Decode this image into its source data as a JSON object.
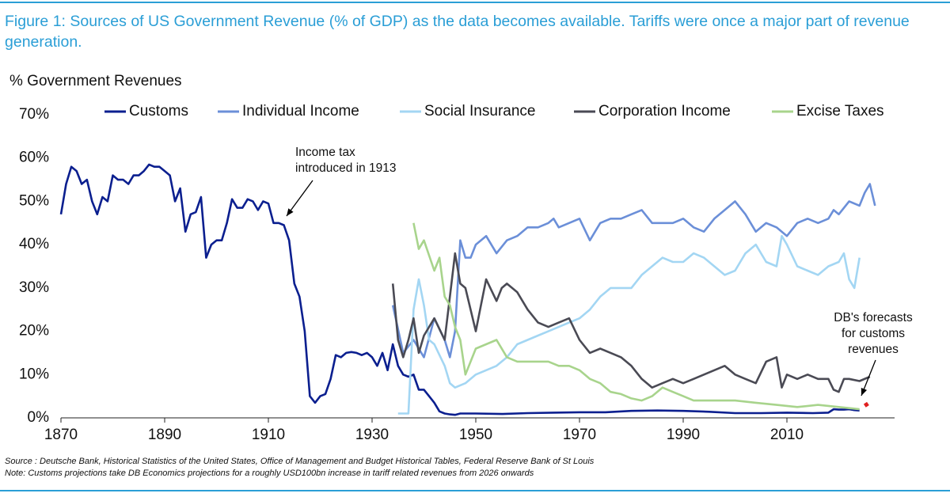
{
  "chart_data": {
    "type": "line",
    "title": "Figure 1: Sources of US Government Revenue (% of GDP) as the data becomes available. Tariffs were once a major part of revenue generation.",
    "y_label": "% Government Revenues",
    "xlim": [
      1870,
      2030
    ],
    "xticks": [
      1870,
      1890,
      1910,
      1930,
      1950,
      1970,
      1990,
      2010
    ],
    "ylim": [
      0,
      70
    ],
    "yticks": [
      {
        "value": 0,
        "label": "0%"
      },
      {
        "value": 10,
        "label": "10%"
      },
      {
        "value": 20,
        "label": "20%"
      },
      {
        "value": 30,
        "label": "30%"
      },
      {
        "value": 40,
        "label": "40%"
      },
      {
        "value": 50,
        "label": "50%"
      },
      {
        "value": 60,
        "label": "60%"
      },
      {
        "value": 70,
        "label": "70%"
      }
    ],
    "grid": false,
    "legend": "top",
    "series": [
      {
        "name": "Customs",
        "color": "#0b1f8f",
        "x": [
          1870,
          1871,
          1872,
          1873,
          1874,
          1875,
          1876,
          1877,
          1878,
          1879,
          1880,
          1881,
          1882,
          1883,
          1884,
          1885,
          1886,
          1887,
          1888,
          1889,
          1890,
          1891,
          1892,
          1893,
          1894,
          1895,
          1896,
          1897,
          1898,
          1899,
          1900,
          1901,
          1902,
          1903,
          1904,
          1905,
          1906,
          1907,
          1908,
          1909,
          1910,
          1911,
          1912,
          1913,
          1914,
          1915,
          1916,
          1917,
          1918,
          1919,
          1920,
          1921,
          1922,
          1923,
          1924,
          1925,
          1926,
          1927,
          1928,
          1929,
          1930,
          1931,
          1932,
          1933,
          1934,
          1935,
          1936,
          1937,
          1938,
          1939,
          1940,
          1941,
          1942,
          1943,
          1944,
          1945,
          1946,
          1947,
          1948,
          1950,
          1955,
          1960,
          1965,
          1970,
          1975,
          1980,
          1985,
          1990,
          1995,
          2000,
          2005,
          2010,
          2015,
          2018,
          2019,
          2020,
          2021,
          2022,
          2023,
          2024
        ],
        "values": [
          47,
          54,
          58,
          57,
          54,
          55,
          50,
          47,
          51,
          50,
          56,
          55,
          55,
          54,
          56,
          56,
          57,
          58.5,
          58,
          58,
          57,
          56,
          50,
          53,
          43,
          47,
          47.5,
          51,
          37,
          40,
          41,
          41,
          45,
          50.5,
          48.5,
          48.5,
          50.5,
          50,
          48,
          50,
          49.5,
          45,
          45,
          44.5,
          41,
          31,
          28,
          20,
          5,
          3.5,
          5,
          5.5,
          9,
          14.5,
          14,
          15,
          15.2,
          15,
          14.5,
          15,
          14,
          12,
          15,
          11,
          17,
          12,
          10,
          9.5,
          10,
          6.5,
          6.5,
          5,
          3.5,
          1.5,
          1,
          0.8,
          0.7,
          1,
          1,
          1,
          0.9,
          1.1,
          1.2,
          1.3,
          1.3,
          1.6,
          1.7,
          1.6,
          1.4,
          1.1,
          1.1,
          1.2,
          1.1,
          1.2,
          2,
          1.9,
          1.9,
          2,
          1.8,
          1.7
        ]
      },
      {
        "name": "Individual Income",
        "color": "#6b8fd8",
        "x": [
          1934,
          1936,
          1938,
          1940,
          1942,
          1944,
          1945,
          1946,
          1947,
          1948,
          1949,
          1950,
          1952,
          1954,
          1956,
          1958,
          1960,
          1962,
          1964,
          1965,
          1966,
          1968,
          1970,
          1972,
          1974,
          1976,
          1978,
          1980,
          1982,
          1984,
          1986,
          1988,
          1990,
          1992,
          1994,
          1996,
          1998,
          2000,
          2002,
          2004,
          2006,
          2008,
          2010,
          2012,
          2014,
          2016,
          2018,
          2019,
          2020,
          2022,
          2024,
          2025,
          2026,
          2027
        ],
        "values": [
          26,
          15,
          18,
          14,
          23,
          18,
          14,
          20,
          41,
          37,
          37,
          40,
          42,
          38,
          41,
          42,
          44,
          44,
          45,
          46,
          44,
          45,
          46,
          41,
          45,
          46,
          46,
          47,
          48,
          45,
          45,
          45,
          46,
          44,
          43,
          46,
          48,
          50,
          47,
          43,
          45,
          44,
          42,
          45,
          46,
          45,
          46,
          48,
          47,
          50,
          49,
          52,
          54,
          49
        ]
      },
      {
        "name": "Social Insurance",
        "color": "#a3d6f3",
        "x": [
          1935,
          1937,
          1938,
          1939,
          1940,
          1941,
          1942,
          1944,
          1945,
          1946,
          1948,
          1950,
          1952,
          1954,
          1956,
          1958,
          1960,
          1962,
          1964,
          1966,
          1968,
          1970,
          1972,
          1974,
          1976,
          1978,
          1980,
          1982,
          1984,
          1986,
          1988,
          1990,
          1992,
          1994,
          1996,
          1998,
          2000,
          2002,
          2004,
          2006,
          2008,
          2009,
          2010,
          2012,
          2014,
          2016,
          2018,
          2020,
          2021,
          2022,
          2023,
          2024
        ],
        "values": [
          1,
          1,
          25,
          32,
          26,
          18,
          17,
          12,
          8,
          7,
          8,
          10,
          11,
          12,
          14,
          17,
          18,
          19,
          20,
          21,
          22,
          23,
          25,
          28,
          30,
          30,
          30,
          33,
          35,
          37,
          36,
          36,
          38,
          37,
          35,
          33,
          34,
          38,
          40,
          36,
          35,
          42,
          40,
          35,
          34,
          33,
          35,
          36,
          38,
          32,
          30,
          37
        ]
      },
      {
        "name": "Corporation Income",
        "color": "#4a4a54",
        "x": [
          1934,
          1935,
          1936,
          1937,
          1938,
          1939,
          1940,
          1942,
          1944,
          1945,
          1946,
          1947,
          1948,
          1950,
          1951,
          1952,
          1954,
          1955,
          1956,
          1958,
          1960,
          1962,
          1964,
          1966,
          1968,
          1970,
          1972,
          1974,
          1976,
          1978,
          1980,
          1982,
          1984,
          1986,
          1988,
          1990,
          1992,
          1994,
          1996,
          1998,
          2000,
          2002,
          2004,
          2006,
          2008,
          2009,
          2010,
          2012,
          2014,
          2016,
          2018,
          2019,
          2020,
          2021,
          2022,
          2024,
          2026
        ],
        "values": [
          31,
          18,
          14,
          18,
          23,
          15,
          19,
          23,
          18,
          28,
          38,
          31,
          30,
          20,
          26,
          32,
          27,
          30,
          31,
          29,
          25,
          22,
          21,
          22,
          23,
          18,
          15,
          16,
          15,
          14,
          12,
          9,
          7,
          8,
          9,
          8,
          9,
          10,
          11,
          12,
          10,
          9,
          8,
          13,
          14,
          7,
          10,
          9,
          10,
          9,
          9,
          6.5,
          6,
          9,
          9,
          8.5,
          9.5
        ]
      },
      {
        "name": "Excise Taxes",
        "color": "#a8d48c",
        "x": [
          1938,
          1939,
          1940,
          1942,
          1943,
          1944,
          1945,
          1946,
          1947,
          1948,
          1950,
          1952,
          1954,
          1956,
          1958,
          1960,
          1962,
          1964,
          1966,
          1968,
          1970,
          1972,
          1974,
          1976,
          1978,
          1980,
          1982,
          1984,
          1986,
          1988,
          1990,
          1992,
          1994,
          1996,
          1998,
          2000,
          2004,
          2008,
          2012,
          2016,
          2020,
          2024
        ],
        "values": [
          45,
          39,
          41,
          34,
          37,
          28,
          26,
          21,
          18,
          10,
          16,
          17,
          18,
          14,
          13,
          13,
          13,
          13,
          12,
          12,
          11,
          9,
          8,
          6,
          5.5,
          4.5,
          4,
          5,
          7,
          6,
          5,
          4,
          4,
          4,
          4,
          4,
          3.5,
          3,
          2.5,
          3,
          2.5,
          2
        ]
      }
    ],
    "forecast": {
      "color": "#e02020",
      "x": [
        2025,
        2026
      ],
      "values": [
        2.8,
        3.6
      ]
    },
    "annotations": [
      {
        "lines": [
          "Income tax",
          "introduced in 1913"
        ]
      },
      {
        "lines": [
          "DB's forecasts",
          "for customs",
          "revenues"
        ]
      }
    ],
    "source": "Source : Deutsche Bank, Historical Statistics of the United States, Office of Management and Budget Historical Tables, Federal Reserve Bank of St Louis",
    "note": "Note: Customs projections take DB Economics projections for a roughly USD100bn increase in tariff related revenues from 2026 onwards"
  }
}
